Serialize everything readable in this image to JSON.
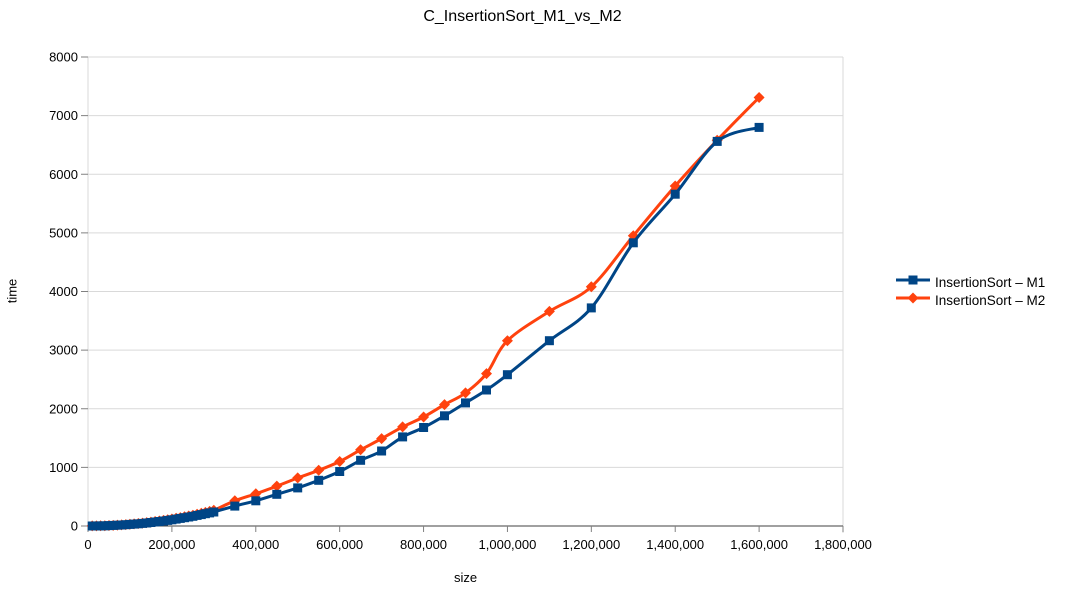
{
  "chart_data": {
    "type": "line",
    "title": "C_InsertionSort_M1_vs_M2",
    "xlabel": "size",
    "ylabel": "time",
    "xlim": [
      0,
      1800000
    ],
    "ylim": [
      0,
      8000
    ],
    "grid": "horizontal",
    "legend_position": "right",
    "line_style": "smooth",
    "colors": {
      "background": "#ffffff",
      "gridline": "#d9d9d9",
      "axis": "#404040",
      "tick": "#808080",
      "text": "#000000"
    },
    "x_ticks": [
      {
        "value": 0,
        "label": "0"
      },
      {
        "value": 200000,
        "label": "200,000"
      },
      {
        "value": 400000,
        "label": "400,000"
      },
      {
        "value": 600000,
        "label": "600,000"
      },
      {
        "value": 800000,
        "label": "800,000"
      },
      {
        "value": 1000000,
        "label": "1,000,000"
      },
      {
        "value": 1200000,
        "label": "1,200,000"
      },
      {
        "value": 1400000,
        "label": "1,400,000"
      },
      {
        "value": 1600000,
        "label": "1,600,000"
      },
      {
        "value": 1800000,
        "label": "1,800,000"
      }
    ],
    "y_ticks": [
      {
        "value": 0,
        "label": "0"
      },
      {
        "value": 1000,
        "label": "1000"
      },
      {
        "value": 2000,
        "label": "2000"
      },
      {
        "value": 3000,
        "label": "3000"
      },
      {
        "value": 4000,
        "label": "4000"
      },
      {
        "value": 5000,
        "label": "5000"
      },
      {
        "value": 6000,
        "label": "6000"
      },
      {
        "value": 7000,
        "label": "7000"
      },
      {
        "value": 8000,
        "label": "8000"
      }
    ],
    "x": [
      10000,
      20000,
      30000,
      40000,
      50000,
      60000,
      70000,
      80000,
      90000,
      100000,
      110000,
      120000,
      130000,
      140000,
      150000,
      160000,
      170000,
      180000,
      190000,
      200000,
      210000,
      220000,
      230000,
      240000,
      250000,
      260000,
      270000,
      280000,
      290000,
      300000,
      350000,
      400000,
      450000,
      500000,
      550000,
      600000,
      650000,
      700000,
      750000,
      800000,
      850000,
      900000,
      950000,
      1000000,
      1100000,
      1200000,
      1300000,
      1400000,
      1500000,
      1600000
    ],
    "series": [
      {
        "name": "InsertionSort – M1",
        "color": "#004586",
        "marker": "square",
        "values": [
          0,
          1,
          2,
          4,
          7,
          10,
          13,
          17,
          22,
          27,
          32,
          38,
          45,
          52,
          60,
          68,
          77,
          86,
          96,
          106,
          117,
          129,
          141,
          153,
          166,
          180,
          194,
          209,
          224,
          239,
          340,
          430,
          540,
          650,
          780,
          930,
          1120,
          1280,
          1520,
          1680,
          1880,
          2100,
          2320,
          2580,
          3160,
          3720,
          4830,
          5660,
          6560,
          6800
        ]
      },
      {
        "name": "InsertionSort – M2",
        "color": "#FF420E",
        "marker": "diamond",
        "values": [
          1,
          2,
          3,
          5,
          8,
          11,
          15,
          19,
          24,
          30,
          36,
          43,
          50,
          58,
          67,
          76,
          86,
          96,
          107,
          119,
          131,
          144,
          157,
          171,
          185,
          200,
          216,
          232,
          249,
          267,
          430,
          550,
          680,
          820,
          950,
          1100,
          1300,
          1490,
          1690,
          1860,
          2070,
          2270,
          2600,
          3160,
          3660,
          4080,
          4950,
          5800,
          6580,
          7310
        ]
      }
    ]
  }
}
